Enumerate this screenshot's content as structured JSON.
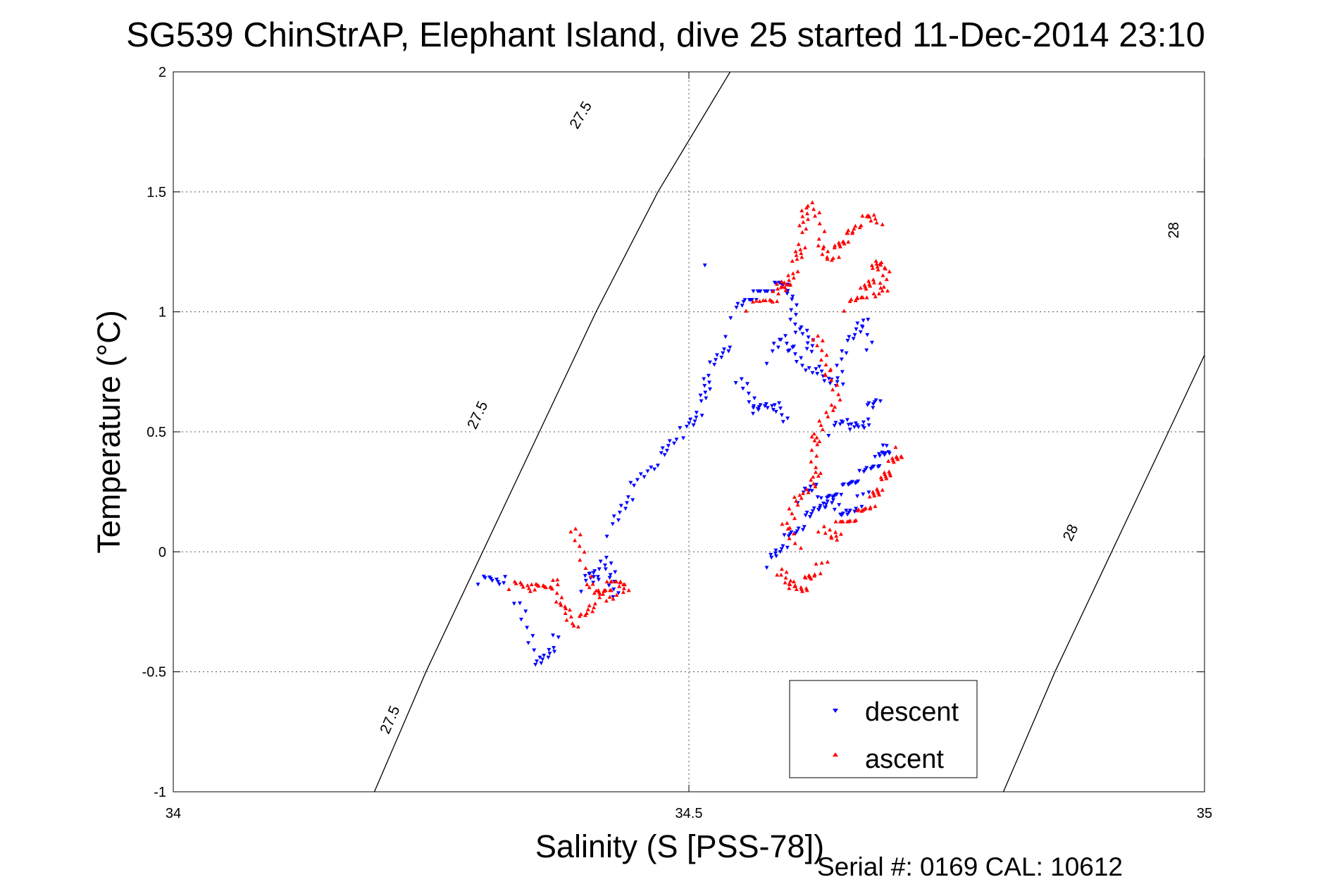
{
  "chart_data": {
    "type": "scatter",
    "title": "SG539 ChinStrAP, Elephant Island, dive 25 started 11-Dec-2014 23:10",
    "xlabel": "Salinity (S [PSS-78])",
    "ylabel": "Temperature (°C)",
    "footer": "Serial #: 0169 CAL: 10612",
    "xlim": [
      34,
      35
    ],
    "ylim": [
      -1,
      2
    ],
    "xticks": [
      34,
      34.5,
      35
    ],
    "xtick_labels": [
      "34",
      "34.5",
      "35"
    ],
    "yticks": [
      -1,
      -0.5,
      0,
      0.5,
      1,
      1.5,
      2
    ],
    "ytick_labels": [
      "-1",
      "-0.5",
      "0",
      "0.5",
      "1",
      "1.5",
      "2"
    ],
    "grid": true,
    "legend_position": "bottom-right",
    "isopycnals": [
      {
        "sigma": "27.5",
        "points": [
          [
            34.195,
            -1.0
          ],
          [
            34.245,
            -0.5
          ],
          [
            34.3,
            0.0
          ],
          [
            34.355,
            0.5
          ],
          [
            34.41,
            1.0
          ],
          [
            34.47,
            1.5
          ],
          [
            34.54,
            2.0
          ]
        ],
        "labels": [
          [
            34.21,
            -0.7
          ],
          [
            34.295,
            0.57
          ],
          [
            34.395,
            1.82
          ]
        ]
      },
      {
        "sigma": "28",
        "points": [
          [
            34.805,
            -1.0
          ],
          [
            34.855,
            -0.5
          ],
          [
            34.91,
            0.0
          ],
          [
            34.965,
            0.5
          ],
          [
            35.0,
            0.82
          ],
          [
            35.0,
            1.64
          ]
        ],
        "labels": [
          [
            34.87,
            0.08
          ],
          [
            34.97,
            1.34
          ]
        ]
      }
    ],
    "series": [
      {
        "name": "descent",
        "color": "#0000ff",
        "marker": "triangle-down",
        "segments": [
          [
            [
              34.3,
              -0.12
            ],
            [
              34.31,
              -0.115
            ],
            [
              34.32,
              -0.12
            ]
          ],
          [
            [
              34.335,
              -0.2
            ],
            [
              34.345,
              -0.35
            ],
            [
              34.355,
              -0.48
            ],
            [
              34.365,
              -0.42
            ],
            [
              34.37,
              -0.36
            ]
          ],
          [
            [
              34.4,
              -0.15
            ],
            [
              34.405,
              -0.08
            ],
            [
              34.41,
              -0.12
            ],
            [
              34.42,
              -0.02
            ],
            [
              34.425,
              -0.12
            ],
            [
              34.43,
              -0.18
            ]
          ],
          [
            [
              34.425,
              0.08
            ],
            [
              34.435,
              0.18
            ],
            [
              34.445,
              0.26
            ],
            [
              34.46,
              0.34
            ],
            [
              34.475,
              0.4
            ],
            [
              34.485,
              0.47
            ],
            [
              34.5,
              0.52
            ],
            [
              34.51,
              0.58
            ],
            [
              34.515,
              0.66
            ],
            [
              34.52,
              0.75
            ],
            [
              34.53,
              0.82
            ],
            [
              34.54,
              0.88
            ]
          ],
          [
            [
              34.545,
              0.99
            ],
            [
              34.555,
              1.05
            ],
            [
              34.565,
              1.07
            ],
            [
              34.575,
              1.09
            ],
            [
              34.585,
              1.11
            ],
            [
              34.595,
              1.12
            ],
            [
              34.6,
              1.02
            ],
            [
              34.605,
              0.94
            ],
            [
              34.615,
              0.89
            ],
            [
              34.62,
              0.85
            ]
          ],
          [
            [
              34.55,
              0.72
            ],
            [
              34.56,
              0.64
            ],
            [
              34.565,
              0.58
            ],
            [
              34.575,
              0.62
            ],
            [
              34.585,
              0.6
            ],
            [
              34.595,
              0.55
            ]
          ],
          [
            [
              34.58,
              0.8
            ],
            [
              34.59,
              0.9
            ],
            [
              34.6,
              0.84
            ],
            [
              34.61,
              0.78
            ],
            [
              34.625,
              0.75
            ],
            [
              34.635,
              0.72
            ],
            [
              34.645,
              0.69
            ],
            [
              34.65,
              0.84
            ],
            [
              34.66,
              0.9
            ],
            [
              34.67,
              0.98
            ],
            [
              34.675,
              0.84
            ]
          ],
          [
            [
              34.64,
              0.5
            ],
            [
              34.65,
              0.55
            ],
            [
              34.66,
              0.52
            ],
            [
              34.67,
              0.52
            ],
            [
              34.675,
              0.6
            ],
            [
              34.685,
              0.64
            ]
          ],
          [
            [
              34.52,
              1.21
            ]
          ],
          [
            [
              34.58,
              -0.05
            ],
            [
              34.585,
              0.0
            ],
            [
              34.595,
              0.05
            ],
            [
              34.605,
              0.09
            ],
            [
              34.615,
              0.14
            ],
            [
              34.625,
              0.19
            ],
            [
              34.635,
              0.22
            ],
            [
              34.645,
              0.25
            ],
            [
              34.655,
              0.28
            ],
            [
              34.665,
              0.31
            ],
            [
              34.675,
              0.35
            ],
            [
              34.685,
              0.38
            ],
            [
              34.69,
              0.42
            ],
            [
              34.69,
              0.43
            ]
          ],
          [
            [
              34.61,
              0.22
            ],
            [
              34.62,
              0.28
            ],
            [
              34.63,
              0.17
            ],
            [
              34.64,
              0.22
            ],
            [
              34.65,
              0.14
            ],
            [
              34.66,
              0.18
            ],
            [
              34.67,
              0.24
            ]
          ]
        ]
      },
      {
        "name": "ascent",
        "color": "#ff0000",
        "marker": "triangle-up",
        "segments": [
          [
            [
              34.33,
              -0.14
            ],
            [
              34.34,
              -0.14
            ],
            [
              34.35,
              -0.15
            ],
            [
              34.36,
              -0.14
            ],
            [
              34.37,
              -0.13
            ],
            [
              34.375,
              -0.2
            ],
            [
              34.38,
              -0.25
            ],
            [
              34.39,
              -0.3
            ],
            [
              34.4,
              -0.26
            ],
            [
              34.41,
              -0.2
            ],
            [
              34.415,
              -0.16
            ],
            [
              34.425,
              -0.14
            ],
            [
              34.43,
              -0.12
            ]
          ],
          [
            [
              34.39,
              0.1
            ],
            [
              34.395,
              0.0
            ],
            [
              34.405,
              -0.15
            ],
            [
              34.42,
              -0.2
            ],
            [
              34.435,
              -0.14
            ],
            [
              34.44,
              -0.16
            ]
          ],
          [
            [
              34.56,
              1.02
            ],
            [
              34.575,
              1.05
            ],
            [
              34.585,
              1.06
            ],
            [
              34.59,
              1.13
            ],
            [
              34.595,
              1.09
            ],
            [
              34.6,
              1.16
            ],
            [
              34.605,
              1.22
            ],
            [
              34.61,
              1.28
            ],
            [
              34.61,
              1.37
            ],
            [
              34.615,
              1.45
            ],
            [
              34.625,
              1.4
            ],
            [
              34.63,
              1.26
            ],
            [
              34.635,
              1.22
            ],
            [
              34.645,
              1.26
            ],
            [
              34.65,
              1.3
            ],
            [
              34.655,
              1.32
            ],
            [
              34.665,
              1.37
            ],
            [
              34.675,
              1.4
            ],
            [
              34.685,
              1.38
            ]
          ],
          [
            [
              34.655,
              1.02
            ],
            [
              34.665,
              1.06
            ],
            [
              34.67,
              1.08
            ],
            [
              34.675,
              1.12
            ],
            [
              34.68,
              1.17
            ],
            [
              34.685,
              1.22
            ],
            [
              34.69,
              1.16
            ],
            [
              34.69,
              1.1
            ],
            [
              34.68,
              1.06
            ]
          ],
          [
            [
              34.625,
              0.9
            ],
            [
              34.63,
              0.82
            ],
            [
              34.635,
              0.74
            ],
            [
              34.645,
              0.66
            ],
            [
              34.635,
              0.57
            ],
            [
              34.625,
              0.5
            ],
            [
              34.62,
              0.44
            ],
            [
              34.625,
              0.34
            ],
            [
              34.62,
              0.28
            ],
            [
              34.61,
              0.24
            ],
            [
              34.6,
              0.18
            ],
            [
              34.595,
              0.1
            ],
            [
              34.605,
              0.02
            ]
          ],
          [
            [
              34.59,
              -0.08
            ],
            [
              34.595,
              -0.12
            ],
            [
              34.6,
              -0.14
            ],
            [
              34.61,
              -0.16
            ],
            [
              34.615,
              -0.12
            ],
            [
              34.62,
              -0.09
            ],
            [
              34.63,
              -0.05
            ]
          ],
          [
            [
              34.63,
              0.1
            ],
            [
              34.64,
              0.05
            ],
            [
              34.645,
              0.11
            ],
            [
              34.655,
              0.13
            ],
            [
              34.665,
              0.16
            ],
            [
              34.675,
              0.19
            ],
            [
              34.68,
              0.23
            ],
            [
              34.685,
              0.27
            ],
            [
              34.69,
              0.31
            ],
            [
              34.695,
              0.35
            ],
            [
              34.7,
              0.39
            ],
            [
              34.705,
              0.42
            ]
          ]
        ]
      }
    ]
  }
}
